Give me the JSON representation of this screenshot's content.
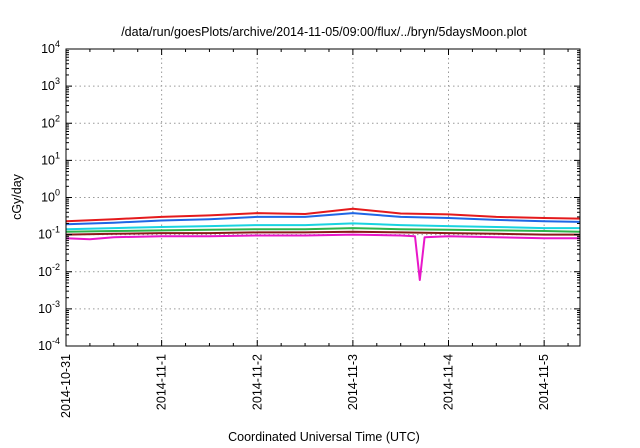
{
  "chart_data": {
    "type": "line",
    "title": "/data/run/goesPlots/archive/2014-11-05/09:00/flux/../bryn/5daysMoon.plot",
    "xlabel": "Coordinated Universal Time (UTC)",
    "ylabel": "cGy/day",
    "yscale": "log",
    "ylim": [
      0.0001,
      10000
    ],
    "y_ticks": [
      {
        "value": 0.0001,
        "mant": "10",
        "exp": "-4"
      },
      {
        "value": 0.001,
        "mant": "10",
        "exp": "-3"
      },
      {
        "value": 0.01,
        "mant": "10",
        "exp": "-2"
      },
      {
        "value": 0.1,
        "mant": "10",
        "exp": "-1"
      },
      {
        "value": 1,
        "mant": "10",
        "exp": "0"
      },
      {
        "value": 10,
        "mant": "10",
        "exp": "1"
      },
      {
        "value": 100,
        "mant": "10",
        "exp": "2"
      },
      {
        "value": 1000,
        "mant": "10",
        "exp": "3"
      },
      {
        "value": 10000,
        "mant": "10",
        "exp": "4"
      }
    ],
    "xlim": [
      "2014-10-31",
      "2014-11-05 09:00"
    ],
    "x_ticks": [
      {
        "value": 0,
        "label": "2014-10-31"
      },
      {
        "value": 1,
        "label": "2014-11-1"
      },
      {
        "value": 2,
        "label": "2014-11-2"
      },
      {
        "value": 3,
        "label": "2014-11-3"
      },
      {
        "value": 4,
        "label": "2014-11-4"
      },
      {
        "value": 5,
        "label": "2014-11-5"
      }
    ],
    "x_range_days": [
      0,
      5.375
    ],
    "grid": true,
    "series": [
      {
        "color": "#e41a1c",
        "values": [
          [
            0,
            0.23
          ],
          [
            0.5,
            0.26
          ],
          [
            1.0,
            0.3
          ],
          [
            1.5,
            0.33
          ],
          [
            2.0,
            0.38
          ],
          [
            2.5,
            0.36
          ],
          [
            3.0,
            0.5
          ],
          [
            3.5,
            0.37
          ],
          [
            4.0,
            0.35
          ],
          [
            4.5,
            0.3
          ],
          [
            5.0,
            0.28
          ],
          [
            5.375,
            0.27
          ]
        ]
      },
      {
        "color": "#1f66e5",
        "values": [
          [
            0,
            0.19
          ],
          [
            0.5,
            0.21
          ],
          [
            1.0,
            0.24
          ],
          [
            1.5,
            0.26
          ],
          [
            2.0,
            0.3
          ],
          [
            2.5,
            0.3
          ],
          [
            3.0,
            0.38
          ],
          [
            3.5,
            0.3
          ],
          [
            4.0,
            0.28
          ],
          [
            4.5,
            0.25
          ],
          [
            5.0,
            0.23
          ],
          [
            5.375,
            0.22
          ]
        ]
      },
      {
        "color": "#19d3e0",
        "values": [
          [
            0,
            0.14
          ],
          [
            0.5,
            0.15
          ],
          [
            1.0,
            0.16
          ],
          [
            1.5,
            0.17
          ],
          [
            2.0,
            0.18
          ],
          [
            2.5,
            0.18
          ],
          [
            3.0,
            0.2
          ],
          [
            3.5,
            0.18
          ],
          [
            4.0,
            0.17
          ],
          [
            4.5,
            0.16
          ],
          [
            5.0,
            0.15
          ],
          [
            5.375,
            0.15
          ]
        ]
      },
      {
        "color": "#2db34a",
        "values": [
          [
            0,
            0.12
          ],
          [
            0.5,
            0.125
          ],
          [
            1.0,
            0.13
          ],
          [
            1.5,
            0.135
          ],
          [
            2.0,
            0.14
          ],
          [
            2.5,
            0.14
          ],
          [
            3.0,
            0.15
          ],
          [
            3.5,
            0.14
          ],
          [
            4.0,
            0.135
          ],
          [
            4.5,
            0.13
          ],
          [
            5.0,
            0.125
          ],
          [
            5.375,
            0.12
          ]
        ]
      },
      {
        "color": "#8b1a1a",
        "values": [
          [
            0,
            0.1
          ],
          [
            0.5,
            0.105
          ],
          [
            1.0,
            0.11
          ],
          [
            1.5,
            0.11
          ],
          [
            2.0,
            0.115
          ],
          [
            2.5,
            0.115
          ],
          [
            3.0,
            0.12
          ],
          [
            3.5,
            0.115
          ],
          [
            4.0,
            0.11
          ],
          [
            4.5,
            0.105
          ],
          [
            5.0,
            0.1
          ],
          [
            5.375,
            0.1
          ]
        ]
      },
      {
        "color": "#e817c9",
        "values": [
          [
            0,
            0.08
          ],
          [
            0.25,
            0.075
          ],
          [
            0.5,
            0.085
          ],
          [
            1.0,
            0.09
          ],
          [
            1.5,
            0.09
          ],
          [
            2.0,
            0.095
          ],
          [
            2.5,
            0.095
          ],
          [
            3.0,
            0.1
          ],
          [
            3.5,
            0.095
          ],
          [
            3.65,
            0.09
          ],
          [
            3.7,
            0.006
          ],
          [
            3.75,
            0.085
          ],
          [
            4.0,
            0.09
          ],
          [
            4.5,
            0.085
          ],
          [
            5.0,
            0.08
          ],
          [
            5.375,
            0.08
          ]
        ]
      }
    ]
  }
}
